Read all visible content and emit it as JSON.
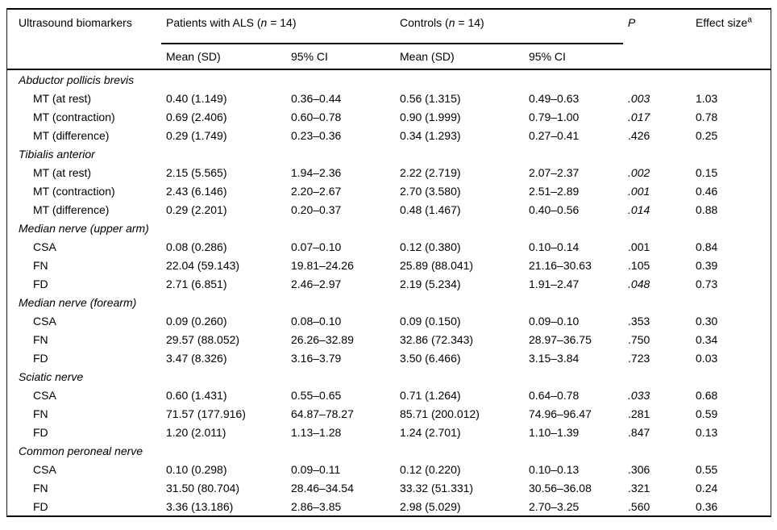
{
  "header": {
    "col1": "Ultrasound biomarkers",
    "als_group_prefix": "Patients with ALS (",
    "als_group_n": "n",
    "als_group_suffix": " = 14)",
    "controls_group_prefix": "Controls (",
    "controls_group_n": "n",
    "controls_group_suffix": " = 14)",
    "sub_mean_als": "Mean (SD)",
    "sub_ci_als": "95% CI",
    "sub_mean_controls": "Mean (SD)",
    "sub_ci_controls": "95% CI",
    "p_label": "P",
    "effect_label": "Effect size",
    "effect_superscript": "a"
  },
  "rows": [
    {
      "type": "section",
      "label": "Abductor pollicis brevis"
    },
    {
      "type": "data",
      "label": "MT (at rest)",
      "als_mean": "0.40 (1.149)",
      "als_ci": "0.36–0.44",
      "ctrl_mean": "0.56 (1.315)",
      "ctrl_ci": "0.49–0.63",
      "p": ".003",
      "p_italic": true,
      "effect": "1.03"
    },
    {
      "type": "data",
      "label": "MT (contraction)",
      "als_mean": "0.69 (2.406)",
      "als_ci": "0.60–0.78",
      "ctrl_mean": "0.90 (1.999)",
      "ctrl_ci": "0.79–1.00",
      "p": ".017",
      "p_italic": true,
      "effect": "0.78"
    },
    {
      "type": "data",
      "label": "MT (difference)",
      "als_mean": "0.29 (1.749)",
      "als_ci": "0.23–0.36",
      "ctrl_mean": "0.34 (1.293)",
      "ctrl_ci": "0.27–0.41",
      "p": ".426",
      "p_italic": false,
      "effect": "0.25"
    },
    {
      "type": "section",
      "label": "Tibialis anterior"
    },
    {
      "type": "data",
      "label": "MT (at rest)",
      "als_mean": "2.15 (5.565)",
      "als_ci": "1.94–2.36",
      "ctrl_mean": "2.22 (2.719)",
      "ctrl_ci": "2.07–2.37",
      "p": ".002",
      "p_italic": true,
      "effect": "0.15"
    },
    {
      "type": "data",
      "label": "MT (contraction)",
      "als_mean": "2.43 (6.146)",
      "als_ci": "2.20–2.67",
      "ctrl_mean": "2.70 (3.580)",
      "ctrl_ci": "2.51–2.89",
      "p": ".001",
      "p_italic": true,
      "effect": "0.46"
    },
    {
      "type": "data",
      "label": "MT (difference)",
      "als_mean": "0.29 (2.201)",
      "als_ci": "0.20–0.37",
      "ctrl_mean": "0.48 (1.467)",
      "ctrl_ci": "0.40–0.56",
      "p": ".014",
      "p_italic": true,
      "effect": "0.88"
    },
    {
      "type": "section",
      "label": "Median nerve (upper arm)"
    },
    {
      "type": "data",
      "label": "CSA",
      "als_mean": "0.08 (0.286)",
      "als_ci": "0.07–0.10",
      "ctrl_mean": "0.12 (0.380)",
      "ctrl_ci": "0.10–0.14",
      "p": ".001",
      "p_italic": false,
      "effect": "0.84"
    },
    {
      "type": "data",
      "label": "FN",
      "als_mean": "22.04 (59.143)",
      "als_ci": "19.81–24.26",
      "ctrl_mean": "25.89 (88.041)",
      "ctrl_ci": "21.16–30.63",
      "p": ".105",
      "p_italic": false,
      "effect": "0.39"
    },
    {
      "type": "data",
      "label": "FD",
      "als_mean": "2.71 (6.851)",
      "als_ci": "2.46–2.97",
      "ctrl_mean": "2.19 (5.234)",
      "ctrl_ci": "1.91–2.47",
      "p": ".048",
      "p_italic": true,
      "effect": "0.73"
    },
    {
      "type": "section",
      "label": "Median nerve (forearm)"
    },
    {
      "type": "data",
      "label": "CSA",
      "als_mean": "0.09 (0.260)",
      "als_ci": "0.08–0.10",
      "ctrl_mean": "0.09 (0.150)",
      "ctrl_ci": "0.09–0.10",
      "p": ".353",
      "p_italic": false,
      "effect": "0.30"
    },
    {
      "type": "data",
      "label": "FN",
      "als_mean": "29.57 (88.052)",
      "als_ci": "26.26–32.89",
      "ctrl_mean": "32.86 (72.343)",
      "ctrl_ci": "28.97–36.75",
      "p": ".750",
      "p_italic": false,
      "effect": "0.34"
    },
    {
      "type": "data",
      "label": "FD",
      "als_mean": "3.47 (8.326)",
      "als_ci": "3.16–3.79",
      "ctrl_mean": "3.50 (6.466)",
      "ctrl_ci": "3.15–3.84",
      "p": ".723",
      "p_italic": false,
      "effect": "0.03"
    },
    {
      "type": "section",
      "label": "Sciatic nerve"
    },
    {
      "type": "data",
      "label": "CSA",
      "als_mean": "0.60 (1.431)",
      "als_ci": "0.55–0.65",
      "ctrl_mean": "0.71 (1.264)",
      "ctrl_ci": "0.64–0.78",
      "p": ".033",
      "p_italic": true,
      "effect": "0.68"
    },
    {
      "type": "data",
      "label": "FN",
      "als_mean": "71.57 (177.916)",
      "als_ci": "64.87–78.27",
      "ctrl_mean": "85.71 (200.012)",
      "ctrl_ci": "74.96–96.47",
      "p": ".281",
      "p_italic": false,
      "effect": "0.59"
    },
    {
      "type": "data",
      "label": "FD",
      "als_mean": "1.20 (2.011)",
      "als_ci": "1.13–1.28",
      "ctrl_mean": "1.24 (2.701)",
      "ctrl_ci": "1.10–1.39",
      "p": ".847",
      "p_italic": false,
      "effect": "0.13"
    },
    {
      "type": "section",
      "label": "Common peroneal nerve"
    },
    {
      "type": "data",
      "label": "CSA",
      "als_mean": "0.10 (0.298)",
      "als_ci": "0.09–0.11",
      "ctrl_mean": "0.12 (0.220)",
      "ctrl_ci": "0.10–0.13",
      "p": ".306",
      "p_italic": false,
      "effect": "0.55"
    },
    {
      "type": "data",
      "label": "FN",
      "als_mean": "31.50 (80.704)",
      "als_ci": "28.46–34.54",
      "ctrl_mean": "33.32 (51.331)",
      "ctrl_ci": "30.56–36.08",
      "p": ".321",
      "p_italic": false,
      "effect": "0.24"
    },
    {
      "type": "data",
      "label": "FD",
      "als_mean": "3.36 (13.186)",
      "als_ci": "2.86–3.85",
      "ctrl_mean": "2.98 (5.029)",
      "ctrl_ci": "2.70–3.25",
      "p": ".560",
      "p_italic": false,
      "effect": "0.36"
    }
  ]
}
